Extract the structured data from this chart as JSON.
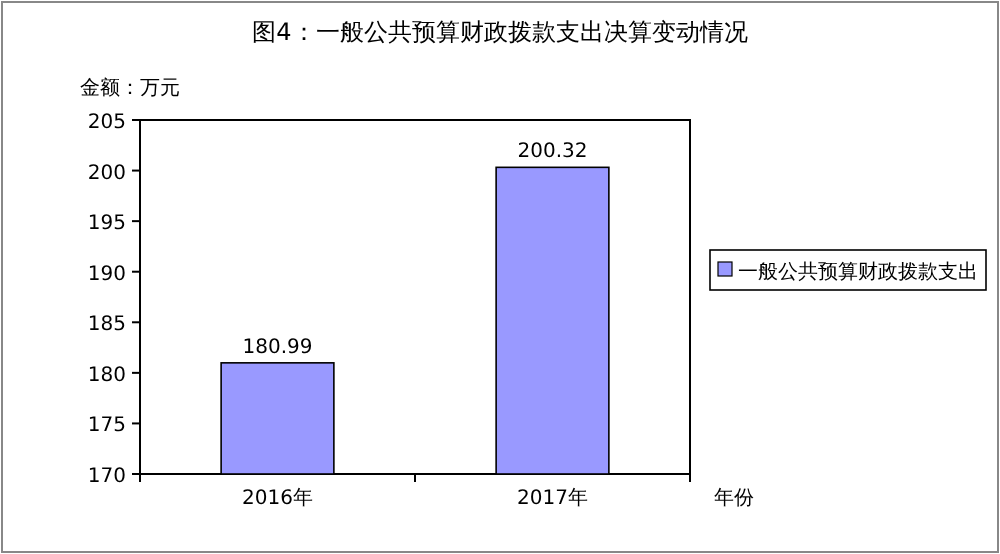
{
  "chart_data": {
    "type": "bar",
    "title": "图4：一般公共预算财政拨款支出决算变动情况",
    "ylabel": "金额：万元",
    "xlabel": "年份",
    "categories": [
      "2016年",
      "2017年"
    ],
    "series": [
      {
        "name": "一般公共预算财政拨款支出",
        "color": "#9999ff",
        "values": [
          180.99,
          200.32
        ]
      }
    ],
    "ylim": [
      170,
      205
    ],
    "yticks": [
      170,
      175,
      180,
      185,
      190,
      195,
      200,
      205
    ],
    "data_labels": true,
    "legend": "right",
    "grid": false
  }
}
